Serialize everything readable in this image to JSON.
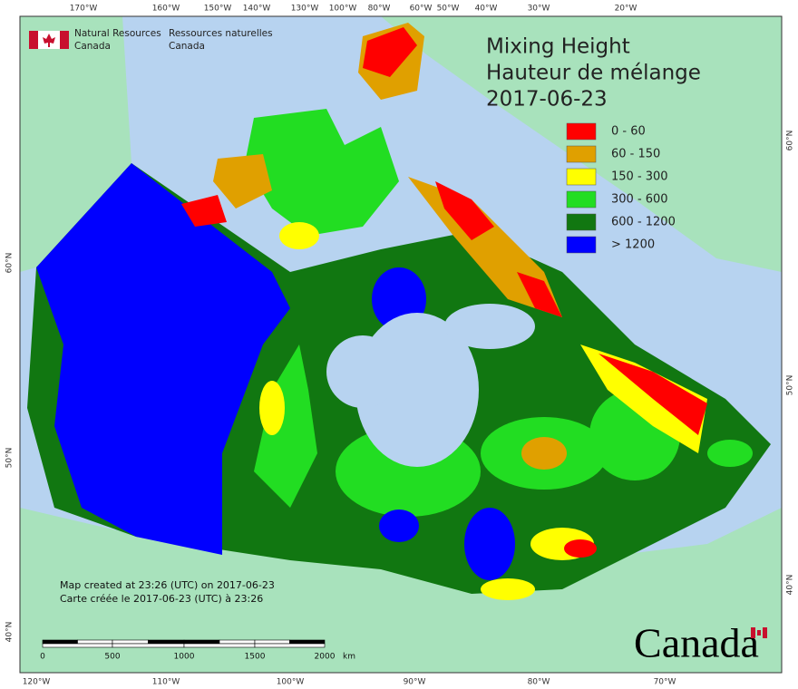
{
  "header": {
    "org_en": [
      "Natural Resources",
      "Canada"
    ],
    "org_fr": [
      "Ressources naturelles",
      "Canada"
    ]
  },
  "title": [
    "Mixing Height",
    "Hauteur de mélange",
    "2017-06-23"
  ],
  "legend": [
    {
      "label": "0 - 60",
      "color": "#ff0000"
    },
    {
      "label": "60 - 150",
      "color": "#e0a000"
    },
    {
      "label": "150 - 300",
      "color": "#ffff00"
    },
    {
      "label": "300 - 600",
      "color": "#22dd22"
    },
    {
      "label": "600 - 1200",
      "color": "#117711"
    },
    {
      "label": "> 1200",
      "color": "#0000ff"
    }
  ],
  "graticule": {
    "top": [
      "170°W",
      "160°W",
      "150°W",
      "140°W",
      "130°W",
      "100°W",
      "80°W",
      "60°W",
      "50°W",
      "40°W",
      "30°W",
      "20°W"
    ],
    "bottom": [
      "120°W",
      "110°W",
      "100°W",
      "90°W",
      "80°W",
      "70°W"
    ],
    "left": [
      "60°N",
      "50°N",
      "40°N"
    ],
    "right": [
      "60°N",
      "50°N",
      "40°N"
    ]
  },
  "credits": [
    "Map created at 23:26 (UTC) on 2017-06-23",
    "Carte créée le 2017-06-23 (UTC) à 23:26"
  ],
  "scale_bar": {
    "labels": [
      "0",
      "500",
      "1000",
      "1500",
      "2000"
    ],
    "unit": "km"
  },
  "wordmark": "Canada"
}
